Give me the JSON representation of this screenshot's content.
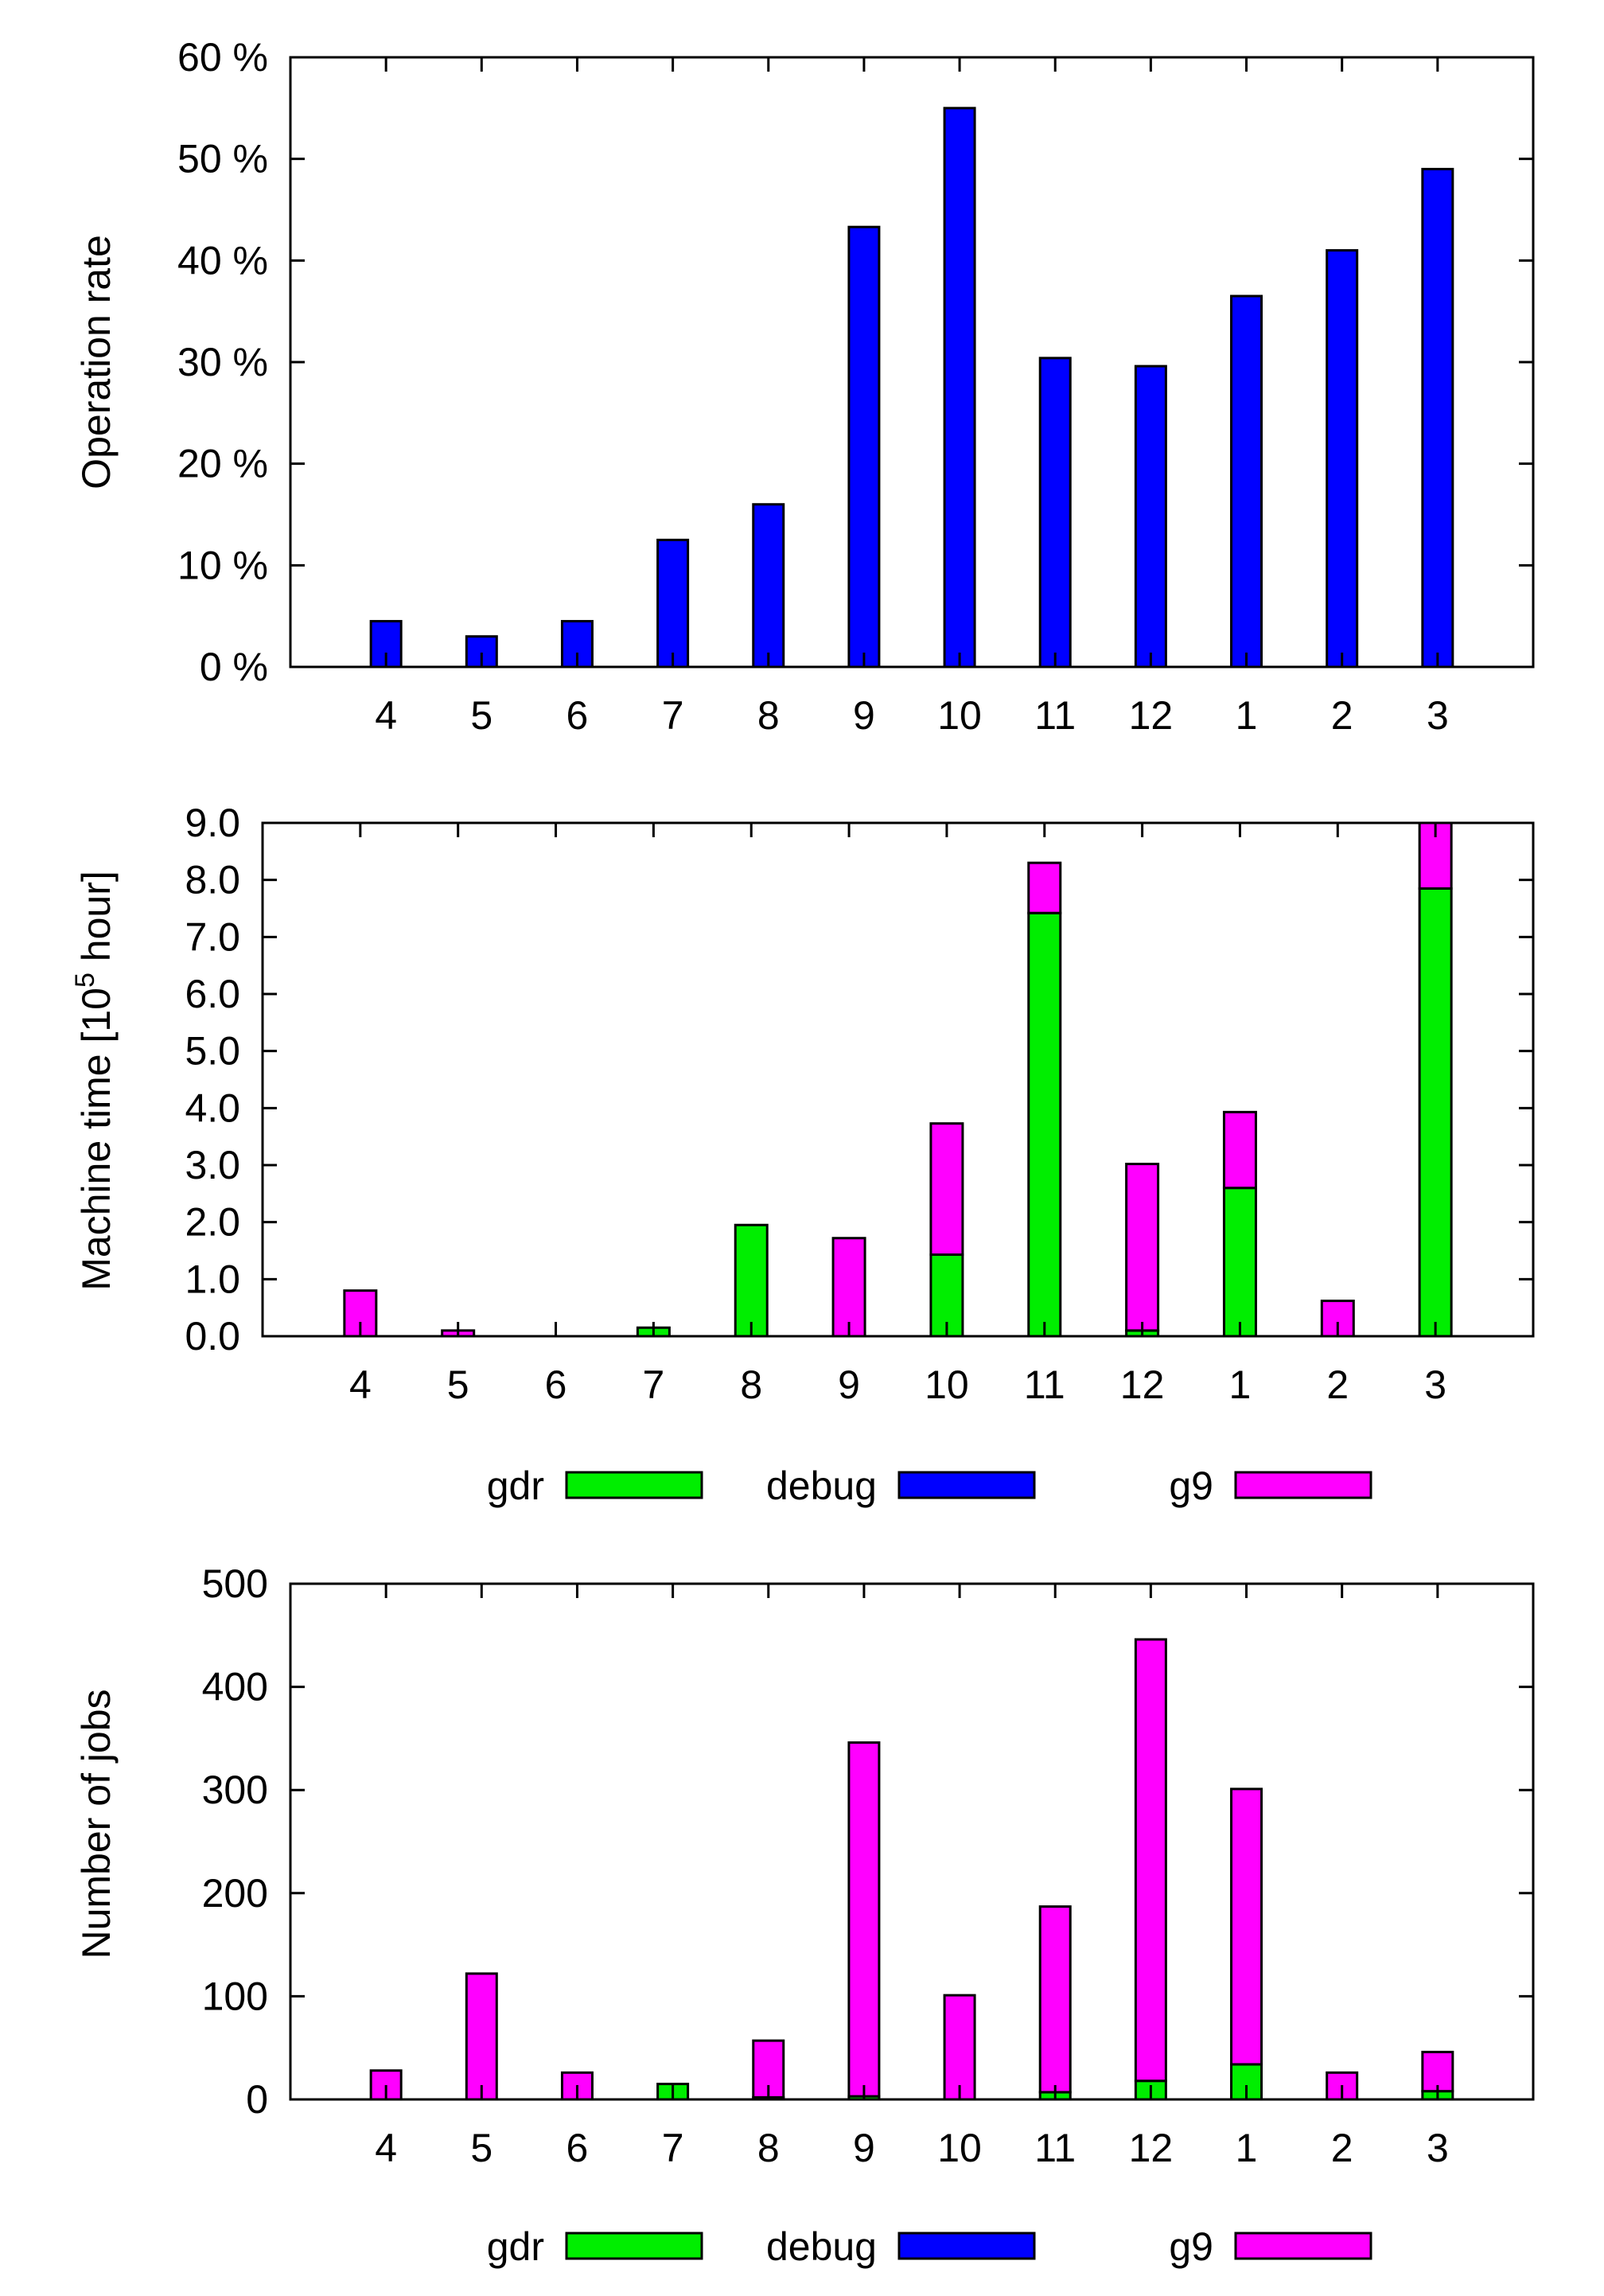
{
  "colors": {
    "gdr": "#00ee00",
    "debug": "#0000ff",
    "g9": "#ff00ff",
    "axis": "#000000",
    "outline": "#000000"
  },
  "chart_data": [
    {
      "type": "bar",
      "categories": [
        "4",
        "5",
        "6",
        "7",
        "8",
        "9",
        "10",
        "11",
        "12",
        "1",
        "2",
        "3"
      ],
      "ylabel": "Operation rate",
      "ylim": [
        0,
        60
      ],
      "yticks": [
        0,
        10,
        20,
        30,
        40,
        50,
        60
      ],
      "ytick_labels": [
        "0 %",
        "10 %",
        "20 %",
        "30 %",
        "40 %",
        "50 %",
        "60 %"
      ],
      "series": [
        {
          "color": "#0000ff",
          "values": [
            4.5,
            3.0,
            4.5,
            12.5,
            16.0,
            43.3,
            55.0,
            30.4,
            29.6,
            36.5,
            41.0,
            49.0
          ]
        }
      ],
      "grid": false
    },
    {
      "type": "bar",
      "stacked": true,
      "categories": [
        "4",
        "5",
        "6",
        "7",
        "8",
        "9",
        "10",
        "11",
        "12",
        "1",
        "2",
        "3"
      ],
      "ylabel_prefix": "Machine time [10",
      "ylabel_sup": "5",
      "ylabel_suffix": " hour]",
      "ylim": [
        0,
        9
      ],
      "yticks": [
        0,
        1,
        2,
        3,
        4,
        5,
        6,
        7,
        8,
        9
      ],
      "ytick_labels": [
        "0.0",
        "1.0",
        "2.0",
        "3.0",
        "4.0",
        "5.0",
        "6.0",
        "7.0",
        "8.0",
        "9.0"
      ],
      "legend": [
        "gdr",
        "debug",
        "g9"
      ],
      "legend_position": "below",
      "series": [
        {
          "name": "gdr",
          "color": "#00ee00",
          "values": [
            0.0,
            0.0,
            0.0,
            0.15,
            1.95,
            0.0,
            1.43,
            7.42,
            0.1,
            2.6,
            0.0,
            7.85
          ]
        },
        {
          "name": "debug",
          "color": "#0000ff",
          "values": [
            0,
            0,
            0,
            0,
            0,
            0,
            0,
            0,
            0,
            0,
            0,
            0
          ]
        },
        {
          "name": "g9",
          "color": "#ff00ff",
          "values": [
            0.8,
            0.1,
            0.0,
            0.0,
            0.0,
            1.72,
            2.3,
            0.88,
            2.92,
            1.33,
            0.62,
            1.15
          ]
        }
      ],
      "grid": false
    },
    {
      "type": "bar",
      "stacked": true,
      "categories": [
        "4",
        "5",
        "6",
        "7",
        "8",
        "9",
        "10",
        "11",
        "12",
        "1",
        "2",
        "3"
      ],
      "ylabel": "Number of jobs",
      "ylim": [
        0,
        500
      ],
      "yticks": [
        0,
        100,
        200,
        300,
        400,
        500
      ],
      "ytick_labels": [
        "0",
        "100",
        "200",
        "300",
        "400",
        "500"
      ],
      "legend": [
        "gdr",
        "debug",
        "g9"
      ],
      "legend_position": "below",
      "series": [
        {
          "name": "gdr",
          "color": "#00ee00",
          "values": [
            0,
            0,
            0,
            15,
            2,
            3,
            0,
            7,
            18,
            34,
            0,
            8
          ]
        },
        {
          "name": "debug",
          "color": "#0000ff",
          "values": [
            0,
            0,
            0,
            0,
            0,
            0,
            0,
            0,
            0,
            0,
            0,
            0
          ]
        },
        {
          "name": "g9",
          "color": "#ff00ff",
          "values": [
            28,
            122,
            26,
            0,
            55,
            343,
            101,
            180,
            428,
            267,
            26,
            38
          ]
        }
      ],
      "grid": false
    }
  ]
}
